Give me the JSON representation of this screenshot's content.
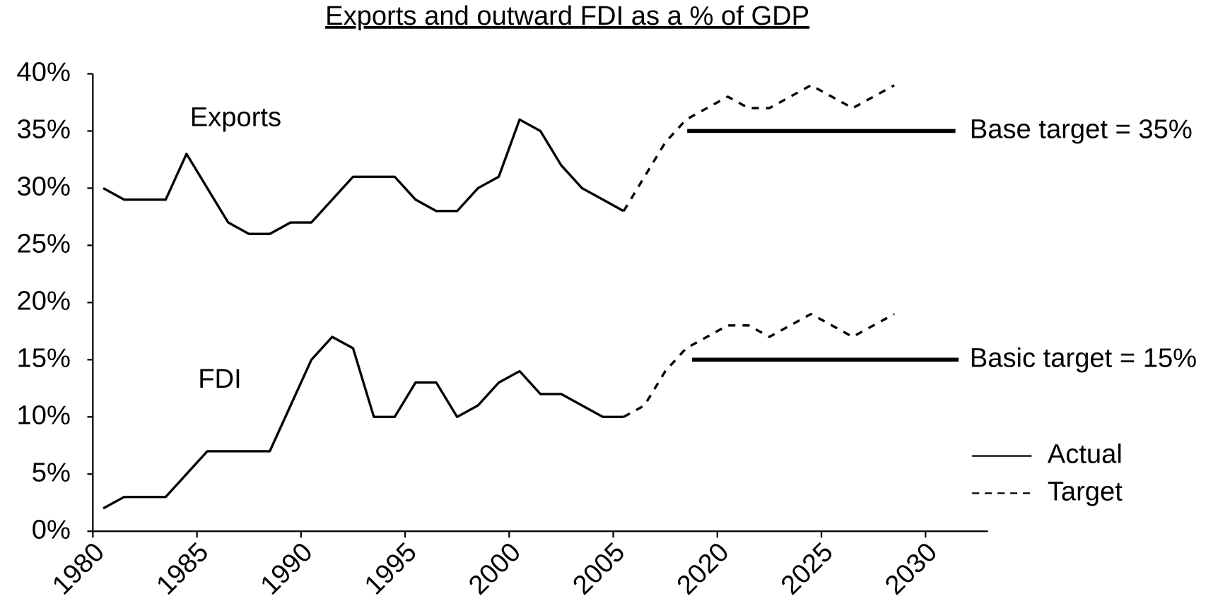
{
  "chart_data": {
    "type": "line",
    "title": "Exports and outward FDI as a % of GDP",
    "categories": [
      "1980",
      null,
      null,
      null,
      null,
      "1985",
      null,
      null,
      null,
      null,
      "1990",
      null,
      null,
      null,
      null,
      "1995",
      null,
      null,
      null,
      null,
      "2000",
      null,
      null,
      null,
      null,
      "2005",
      null,
      null,
      null,
      null,
      "2020",
      null,
      null,
      null,
      null,
      "2025",
      null,
      null,
      null,
      null,
      "2030",
      null,
      null
    ],
    "ylim": [
      0,
      40
    ],
    "yticks": [
      {
        "value": 0,
        "label": "0%"
      },
      {
        "value": 5,
        "label": "5%"
      },
      {
        "value": 10,
        "label": "10%"
      },
      {
        "value": 15,
        "label": "15%"
      },
      {
        "value": 20,
        "label": "20%"
      },
      {
        "value": 25,
        "label": "25%"
      },
      {
        "value": 30,
        "label": "30%"
      },
      {
        "value": 35,
        "label": "35%"
      },
      {
        "value": 40,
        "label": "40%"
      }
    ],
    "series": [
      {
        "name": "Exports",
        "color": "#000000",
        "values": [
          30,
          29,
          29,
          29,
          33,
          30,
          27,
          26,
          26,
          27,
          27,
          29,
          31,
          31,
          31,
          29,
          28,
          28,
          30,
          31,
          36,
          35,
          32,
          30,
          29,
          28,
          null,
          null,
          null,
          null,
          null,
          null,
          null,
          null,
          null,
          null,
          null,
          null,
          null,
          null,
          null,
          null,
          null
        ],
        "target": [
          null,
          null,
          null,
          null,
          null,
          null,
          null,
          null,
          null,
          null,
          null,
          null,
          null,
          null,
          null,
          null,
          null,
          null,
          null,
          null,
          null,
          null,
          null,
          null,
          null,
          28,
          31,
          34,
          36,
          37,
          38,
          37,
          37,
          38,
          39,
          38,
          37,
          38,
          39,
          null,
          null,
          null,
          null
        ]
      },
      {
        "name": "FDI",
        "color": "#000000",
        "values": [
          2,
          3,
          3,
          3,
          5,
          7,
          7,
          7,
          7,
          11,
          15,
          17,
          16,
          10,
          10,
          13,
          13,
          10,
          11,
          13,
          14,
          12,
          12,
          11,
          10,
          10,
          null,
          null,
          null,
          null,
          null,
          null,
          null,
          null,
          null,
          null,
          null,
          null,
          null,
          null,
          null,
          null,
          null
        ],
        "target": [
          null,
          null,
          null,
          null,
          null,
          null,
          null,
          null,
          null,
          null,
          null,
          null,
          null,
          null,
          null,
          null,
          null,
          null,
          null,
          null,
          null,
          null,
          null,
          null,
          null,
          10,
          11,
          14,
          16,
          17,
          18,
          18,
          17,
          18,
          19,
          18,
          17,
          18,
          19,
          null,
          null,
          null,
          null
        ]
      }
    ],
    "target_lines": [
      {
        "label": "Base target = 35%",
        "value": 35
      },
      {
        "label": "Basic target = 15%",
        "value": 15
      }
    ],
    "legend": [
      {
        "label": "Actual",
        "style": "solid"
      },
      {
        "label": "Target",
        "style": "dashed"
      }
    ]
  }
}
